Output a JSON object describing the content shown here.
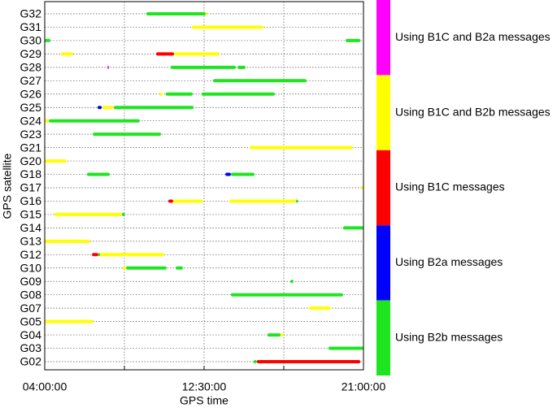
{
  "chart_data": {
    "type": "timeline",
    "x_label": "GPS time",
    "y_label": "GPS satellite",
    "categories": [
      "G32",
      "G31",
      "G30",
      "G29",
      "G28",
      "G27",
      "G26",
      "G25",
      "G24",
      "G23",
      "G21",
      "G20",
      "G18",
      "G17",
      "G16",
      "G15",
      "G14",
      "G13",
      "G12",
      "G10",
      "G09",
      "G08",
      "G07",
      "G05",
      "G04",
      "G03",
      "G02"
    ],
    "xlim": [
      4,
      21
    ],
    "xticks": [
      {
        "value": 4,
        "label": "04:00:00"
      },
      {
        "value": 8.25,
        "label": null
      },
      {
        "value": 12.5,
        "label": "12:30:00"
      },
      {
        "value": 16.75,
        "label": null
      },
      {
        "value": 21,
        "label": "21:00:00"
      }
    ],
    "grid": true,
    "legend": "right",
    "series": [
      {
        "name": "Using B1C and B2a messages",
        "color": "#ff00ff",
        "satellites": [
          "G28"
        ],
        "start": [
          7.34
        ],
        "end": [
          7.42
        ]
      },
      {
        "name": "Using B1C and B2b messages",
        "color": "#ffff00",
        "satellites": [
          "G32",
          "G31",
          "G29",
          "G29",
          "G26",
          "G25",
          "G24",
          "G21",
          "G20",
          "G17",
          "G16",
          "G16",
          "G15",
          "G13",
          "G12",
          "G10",
          "G07",
          "G05",
          "G04"
        ],
        "start": [
          12.59,
          11.85,
          4.87,
          10.9,
          10.11,
          7.04,
          4.0,
          14.93,
          4.0,
          20.87,
          10.85,
          13.84,
          4.52,
          4.0,
          6.86,
          8.16,
          18.09,
          4.0,
          16.58
        ],
        "end": [
          12.68,
          15.67,
          5.52,
          13.32,
          10.29,
          7.69,
          4.22,
          20.44,
          5.17,
          21.0,
          12.46,
          17.4,
          8.12,
          6.43,
          10.37,
          8.34,
          19.26,
          6.6,
          16.75
        ]
      },
      {
        "name": "Using B1C messages",
        "color": "#ff0000",
        "satellites": [
          "G29",
          "G16",
          "G12",
          "G02"
        ],
        "start": [
          9.94,
          10.59,
          6.52,
          15.31
        ],
        "end": [
          10.9,
          10.85,
          6.86,
          20.83
        ]
      },
      {
        "name": "Using B2a messages",
        "color": "#0000ff",
        "satellites": [
          "G25",
          "G18"
        ],
        "start": [
          6.82,
          13.63
        ],
        "end": [
          7.04,
          13.93
        ]
      },
      {
        "name": "Using B2b messages",
        "color": "#1ee61e",
        "satellites": [
          "G32",
          "G30",
          "G30",
          "G28",
          "G28",
          "G27",
          "G26",
          "G26",
          "G25",
          "G24",
          "G23",
          "G18",
          "G18",
          "G16",
          "G15",
          "G14",
          "G12",
          "G10",
          "G10",
          "G09",
          "G08",
          "G04",
          "G03",
          "G02"
        ],
        "start": [
          9.42,
          4.0,
          20.05,
          10.72,
          14.28,
          12.98,
          10.46,
          12.37,
          7.69,
          4.22,
          6.56,
          6.25,
          13.93,
          17.4,
          8.12,
          19.91,
          6.86,
          8.34,
          10.98,
          17.1,
          13.93,
          15.88,
          19.13,
          15.14
        ],
        "end": [
          12.59,
          4.3,
          20.83,
          14.19,
          14.71,
          17.96,
          11.89,
          16.27,
          11.94,
          9.07,
          10.2,
          7.47,
          15.19,
          17.5,
          8.26,
          21.0,
          6.86,
          10.5,
          11.37,
          17.27,
          19.91,
          16.58,
          21.0,
          15.31
        ]
      }
    ]
  }
}
